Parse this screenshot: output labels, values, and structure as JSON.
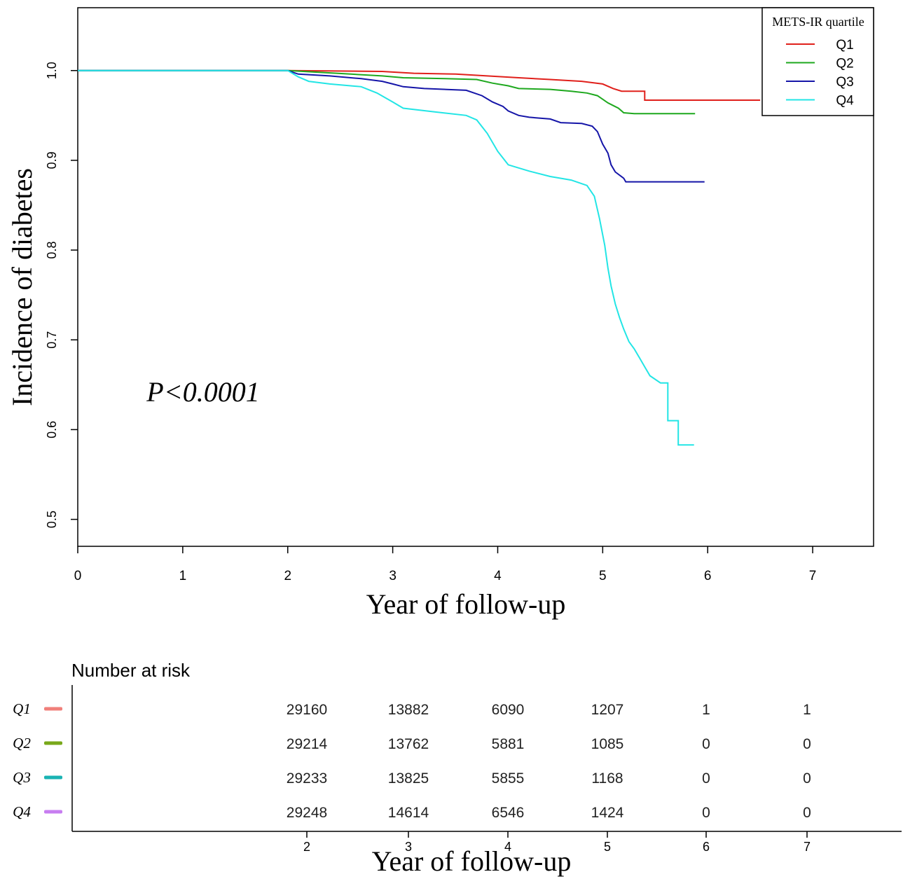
{
  "chart_data": [
    {
      "type": "line",
      "subtype": "kaplan-meier",
      "title": "",
      "xlabel": "Year of follow-up",
      "ylabel": "Incidence of diabetes",
      "xlim": [
        0,
        7.58
      ],
      "ylim": [
        0.47,
        1.07
      ],
      "xticks": [
        "0",
        "1",
        "2",
        "3",
        "4",
        "5",
        "6",
        "7"
      ],
      "yticks": [
        "0.5",
        "0.6",
        "0.7",
        "0.8",
        "0.9",
        "1.0"
      ],
      "annotation": "P<0.0001",
      "legend": {
        "title": "METS-IR quartile",
        "position": "top-right",
        "entries": [
          "Q1",
          "Q2",
          "Q3",
          "Q4"
        ]
      },
      "series": [
        {
          "name": "Q1",
          "color": "#e0201b",
          "points": [
            [
              0,
              1.0
            ],
            [
              2.0,
              1.0
            ],
            [
              2.9,
              0.999
            ],
            [
              3.2,
              0.997
            ],
            [
              3.6,
              0.996
            ],
            [
              3.9,
              0.994
            ],
            [
              4.2,
              0.992
            ],
            [
              4.5,
              0.99
            ],
            [
              4.8,
              0.988
            ],
            [
              5.0,
              0.985
            ],
            [
              5.1,
              0.98
            ],
            [
              5.18,
              0.977
            ],
            [
              5.4,
              0.977
            ],
            [
              5.4,
              0.967
            ],
            [
              6.5,
              0.967
            ]
          ]
        },
        {
          "name": "Q2",
          "color": "#1ea81e",
          "points": [
            [
              0,
              1.0
            ],
            [
              2.0,
              1.0
            ],
            [
              2.3,
              0.998
            ],
            [
              2.6,
              0.996
            ],
            [
              2.9,
              0.994
            ],
            [
              3.1,
              0.992
            ],
            [
              3.5,
              0.991
            ],
            [
              3.8,
              0.99
            ],
            [
              3.95,
              0.986
            ],
            [
              4.1,
              0.983
            ],
            [
              4.2,
              0.98
            ],
            [
              4.5,
              0.979
            ],
            [
              4.7,
              0.977
            ],
            [
              4.85,
              0.975
            ],
            [
              4.95,
              0.972
            ],
            [
              5.0,
              0.968
            ],
            [
              5.05,
              0.964
            ],
            [
              5.1,
              0.961
            ],
            [
              5.15,
              0.958
            ],
            [
              5.2,
              0.953
            ],
            [
              5.3,
              0.952
            ],
            [
              5.88,
              0.952
            ]
          ]
        },
        {
          "name": "Q3",
          "color": "#1515a8",
          "points": [
            [
              0,
              1.0
            ],
            [
              2.0,
              1.0
            ],
            [
              2.1,
              0.996
            ],
            [
              2.4,
              0.994
            ],
            [
              2.7,
              0.991
            ],
            [
              2.9,
              0.988
            ],
            [
              3.0,
              0.985
            ],
            [
              3.1,
              0.982
            ],
            [
              3.3,
              0.98
            ],
            [
              3.7,
              0.978
            ],
            [
              3.85,
              0.972
            ],
            [
              3.95,
              0.965
            ],
            [
              4.05,
              0.96
            ],
            [
              4.1,
              0.955
            ],
            [
              4.2,
              0.95
            ],
            [
              4.3,
              0.948
            ],
            [
              4.5,
              0.946
            ],
            [
              4.6,
              0.942
            ],
            [
              4.8,
              0.941
            ],
            [
              4.9,
              0.938
            ],
            [
              4.95,
              0.932
            ],
            [
              5.0,
              0.918
            ],
            [
              5.05,
              0.908
            ],
            [
              5.08,
              0.895
            ],
            [
              5.12,
              0.887
            ],
            [
              5.2,
              0.88
            ],
            [
              5.22,
              0.876
            ],
            [
              5.97,
              0.876
            ]
          ]
        },
        {
          "name": "Q4",
          "color": "#22e5e5",
          "points": [
            [
              0,
              1.0
            ],
            [
              2.0,
              1.0
            ],
            [
              2.1,
              0.993
            ],
            [
              2.2,
              0.988
            ],
            [
              2.4,
              0.985
            ],
            [
              2.7,
              0.982
            ],
            [
              2.85,
              0.975
            ],
            [
              3.0,
              0.965
            ],
            [
              3.1,
              0.958
            ],
            [
              3.4,
              0.954
            ],
            [
              3.7,
              0.95
            ],
            [
              3.8,
              0.945
            ],
            [
              3.9,
              0.93
            ],
            [
              4.0,
              0.91
            ],
            [
              4.1,
              0.895
            ],
            [
              4.3,
              0.888
            ],
            [
              4.5,
              0.882
            ],
            [
              4.7,
              0.878
            ],
            [
              4.85,
              0.872
            ],
            [
              4.92,
              0.86
            ],
            [
              4.97,
              0.835
            ],
            [
              5.02,
              0.805
            ],
            [
              5.05,
              0.78
            ],
            [
              5.08,
              0.76
            ],
            [
              5.12,
              0.74
            ],
            [
              5.16,
              0.725
            ],
            [
              5.2,
              0.712
            ],
            [
              5.25,
              0.698
            ],
            [
              5.3,
              0.69
            ],
            [
              5.35,
              0.68
            ],
            [
              5.4,
              0.67
            ],
            [
              5.45,
              0.66
            ],
            [
              5.55,
              0.652
            ],
            [
              5.62,
              0.652
            ],
            [
              5.62,
              0.61
            ],
            [
              5.72,
              0.61
            ],
            [
              5.72,
              0.583
            ],
            [
              5.87,
              0.583
            ]
          ]
        }
      ]
    },
    {
      "type": "table",
      "title": "Number at risk",
      "xlabel": "Year of follow-up",
      "columns": [
        "2",
        "3",
        "4",
        "5",
        "6",
        "7"
      ],
      "rows": [
        {
          "name": "Q1",
          "color": "#f07f7a",
          "values": [
            "29160",
            "13882",
            "6090",
            "1207",
            "1",
            "1"
          ]
        },
        {
          "name": "Q2",
          "color": "#78a81a",
          "values": [
            "29214",
            "13762",
            "5881",
            "1085",
            "0",
            "0"
          ]
        },
        {
          "name": "Q3",
          "color": "#1ab3b3",
          "values": [
            "29233",
            "13825",
            "5855",
            "1168",
            "0",
            "0"
          ]
        },
        {
          "name": "Q4",
          "color": "#c77df0",
          "values": [
            "29248",
            "14614",
            "6546",
            "1424",
            "0",
            "0"
          ]
        }
      ]
    }
  ]
}
